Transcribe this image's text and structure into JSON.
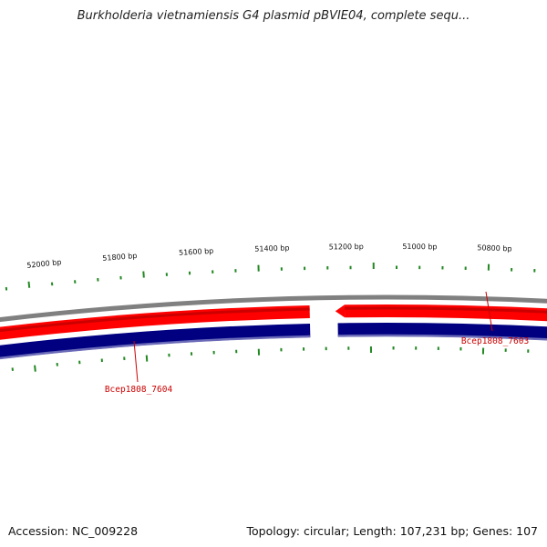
{
  "title": "Burkholderia vietnamiensis G4 plasmid pBVIE04, complete sequ...",
  "footer": {
    "accession": "Accession: NC_009228",
    "summary": "Topology: circular; Length: 107,231 bp; Genes: 107"
  },
  "colors": {
    "backbone": "#808080",
    "forward_gene": "#ff0000",
    "forward_gene_dark": "#cc0000",
    "cds": "#000080",
    "cds_edge": "#6a6ab8",
    "tick": "#228822",
    "gene_label": "#cc0000",
    "leader": "#cc0000"
  },
  "scale_labels": [
    "52000 bp",
    "51800 bp",
    "51600 bp",
    "51400 bp",
    "51200 bp",
    "51000 bp",
    "50800 bp"
  ],
  "genes": [
    {
      "name": "Bcep1808_7604"
    },
    {
      "name": "Bcep1808_7603"
    }
  ]
}
